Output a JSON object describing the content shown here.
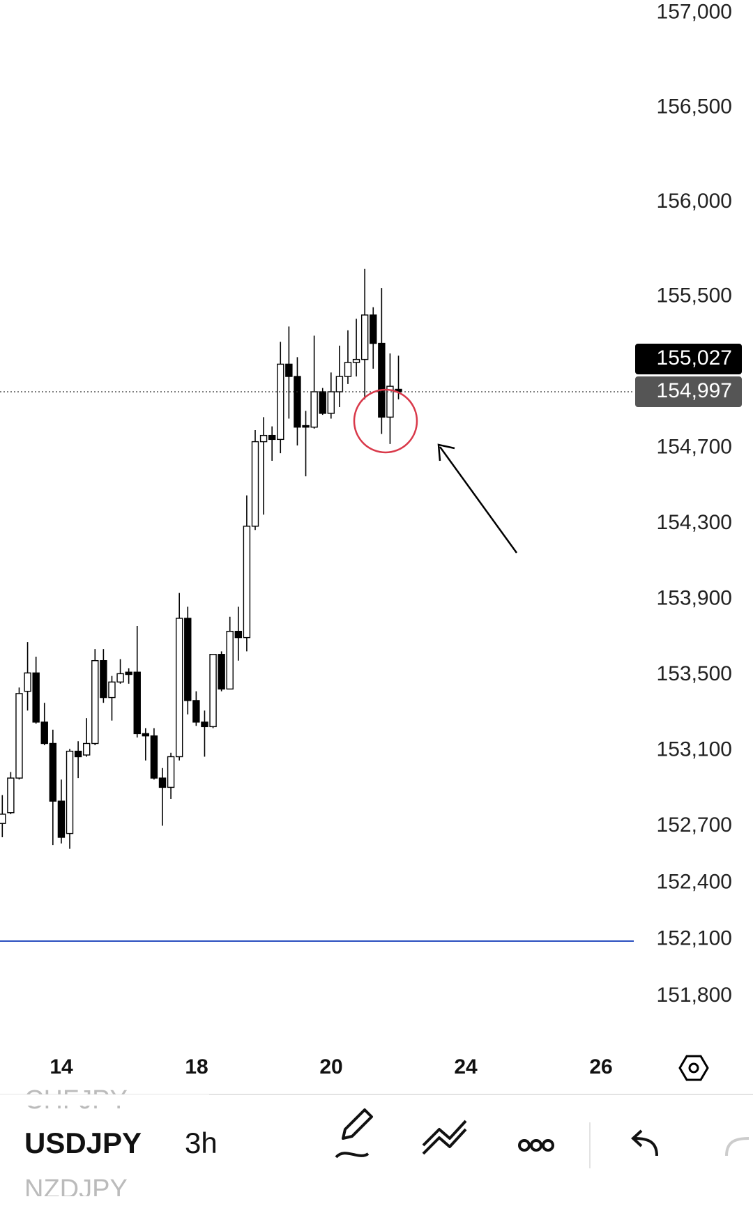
{
  "chart_data": {
    "type": "candlestick",
    "ylim": [
      151.524,
      157.069
    ],
    "yticks": [
      {
        "value": 157,
        "label": "157,000"
      },
      {
        "value": 156.5,
        "label": "156,500"
      },
      {
        "value": 156,
        "label": "156,000"
      },
      {
        "value": 155.5,
        "label": "155,500"
      },
      {
        "value": 154.7,
        "label": "154,700"
      },
      {
        "value": 154.3,
        "label": "154,300"
      },
      {
        "value": 153.9,
        "label": "153,900"
      },
      {
        "value": 153.5,
        "label": "153,500"
      },
      {
        "value": 153.1,
        "label": "153,100"
      },
      {
        "value": 152.7,
        "label": "152,700"
      },
      {
        "value": 152.4,
        "label": "152,400"
      },
      {
        "value": 152.1,
        "label": "152,100"
      },
      {
        "value": 151.8,
        "label": "151,800"
      }
    ],
    "x_labels": [
      "14",
      "18",
      "20",
      "24",
      "26"
    ],
    "open": [
      152.714,
      152.771,
      152.954,
      153.413,
      153.51,
      153.25,
      153.137,
      152.832,
      152.661,
      153.096,
      153.076,
      153.137,
      153.575,
      153.38,
      153.462,
      153.514,
      153.514,
      153.189,
      153.177,
      152.954,
      152.905,
      153.067,
      153.799,
      153.364,
      153.25,
      153.226,
      153.608,
      153.425,
      153.73,
      153.697,
      154.286,
      154.733,
      154.766,
      154.745,
      155.143,
      155.078,
      154.818,
      154.81,
      154.997,
      154.883,
      154.997,
      155.078,
      155.152,
      155.168,
      155.403,
      155.253,
      154.863,
      155.01
    ],
    "high": [
      152.864,
      152.986,
      153.433,
      153.673,
      153.596,
      153.352,
      153.21,
      152.946,
      153.108,
      153.149,
      153.271,
      153.636,
      153.636,
      153.494,
      153.583,
      153.535,
      153.758,
      153.218,
      153.218,
      153.007,
      153.088,
      153.933,
      153.86,
      153.413,
      153.311,
      153.608,
      153.624,
      153.807,
      153.86,
      154.449,
      154.794,
      154.863,
      154.814,
      155.261,
      155.342,
      155.18,
      154.896,
      155.294,
      155.017,
      155.099,
      155.241,
      155.322,
      155.383,
      155.647,
      155.444,
      155.546,
      155.2,
      155.188
    ],
    "low": [
      152.641,
      152.763,
      152.946,
      153.311,
      153.242,
      153.128,
      152.6,
      152.608,
      152.58,
      152.954,
      153.067,
      153.128,
      153.352,
      153.258,
      153.453,
      153.453,
      153.169,
      153.047,
      152.946,
      152.702,
      152.844,
      153.047,
      153.291,
      153.23,
      153.067,
      153.218,
      153.413,
      153.425,
      153.575,
      153.624,
      154.266,
      154.347,
      154.632,
      154.672,
      154.855,
      154.713,
      154.55,
      154.802,
      154.875,
      154.855,
      154.916,
      155.038,
      155.078,
      154.957,
      155.119,
      154.774,
      154.721,
      154.957
    ],
    "close": [
      152.763,
      152.954,
      153.401,
      153.51,
      153.25,
      153.137,
      152.832,
      152.641,
      153.096,
      153.067,
      153.137,
      153.575,
      153.38,
      153.462,
      153.506,
      153.502,
      153.189,
      153.177,
      152.954,
      152.905,
      153.067,
      153.799,
      153.364,
      153.25,
      153.226,
      153.608,
      153.425,
      153.73,
      153.697,
      154.286,
      154.733,
      154.766,
      154.745,
      155.143,
      155.078,
      154.81,
      154.81,
      154.997,
      154.883,
      154.997,
      155.078,
      155.152,
      155.168,
      155.403,
      155.253,
      154.863,
      155.026,
      154.997
    ],
    "up_color": "#ffffff",
    "down_color": "#000000",
    "price_labels": [
      {
        "value": 155.027,
        "label": "155,027",
        "color": "#000000"
      },
      {
        "value": 154.997,
        "label": "154,997",
        "color": "#555555"
      }
    ],
    "hlines": [
      {
        "value": 152.092,
        "color": "#2a4fbf"
      }
    ]
  },
  "toolbar": {
    "prev_symbol": "CHFJPY",
    "symbol": "USDJPY",
    "interval": "3h",
    "next_symbol": "NZDJPY"
  }
}
